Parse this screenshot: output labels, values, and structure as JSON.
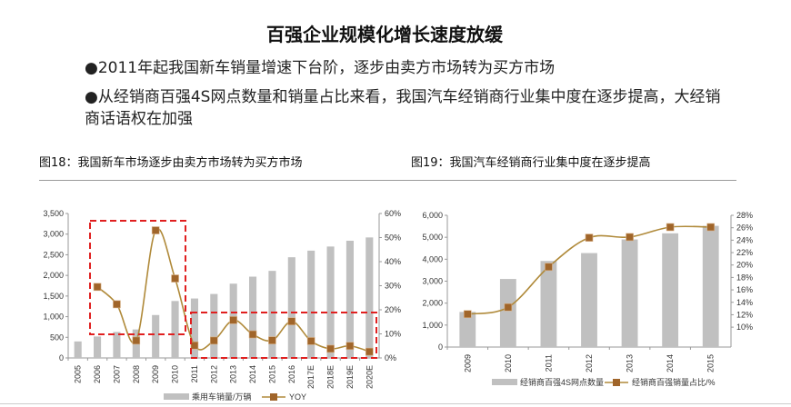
{
  "title": "百强企业规模化增长速度放缓",
  "bullets": [
    "●2011年起我国新车销量增速下台阶，逐步由卖方市场转为买方市场",
    "●从经销商百强4S网点数量和销量占比来看，我国汽车经销商行业集中度在逐步提高，大经销商话语权在加强"
  ],
  "colors": {
    "bar": "#c0c0c0",
    "line": "#b08a3a",
    "marker": "#a0652a",
    "highlight": "#e02020"
  },
  "chart_data": [
    {
      "type": "bar+line",
      "title": "图18：我国新车市场逐步由卖方市场转为买方市场",
      "categories": [
        "2005",
        "2006",
        "2007",
        "2008",
        "2009",
        "2010",
        "2011",
        "2012",
        "2013",
        "2014",
        "2015",
        "2016",
        "2017E",
        "2018E",
        "2019E",
        "2020E"
      ],
      "series": [
        {
          "name": "乘用车销量/万辆",
          "type": "bar",
          "axis": "left",
          "values": [
            400,
            520,
            630,
            690,
            1040,
            1380,
            1440,
            1550,
            1800,
            1970,
            2110,
            2440,
            2600,
            2700,
            2840,
            2920
          ]
        },
        {
          "name": "YOY",
          "type": "line",
          "axis": "right",
          "values": [
            null,
            29.5,
            22.3,
            7.2,
            53,
            33,
            5.2,
            7.2,
            15.7,
            9.8,
            7.3,
            15.2,
            7.0,
            3.8,
            5.0,
            2.6
          ]
        }
      ],
      "ylim": [
        0,
        3500
      ],
      "yticks": [
        "0",
        "500",
        "1,000",
        "1,500",
        "2,000",
        "2,500",
        "3,000",
        "3,500"
      ],
      "y2lim": [
        0,
        60
      ],
      "y2ticks": [
        "0%",
        "10%",
        "20%",
        "30%",
        "40%",
        "50%",
        "60%"
      ],
      "annotations": [
        "dashed red box 2006-2010",
        "dashed red box 2011-2020E"
      ],
      "legend": "bottom",
      "grid": false
    },
    {
      "type": "bar+line",
      "title": "图19：我国汽车经销商行业集中度在逐步提高",
      "categories": [
        "2009",
        "2010",
        "2011",
        "2012",
        "2013",
        "2014",
        "2015"
      ],
      "series": [
        {
          "name": "经销商百强4S网点数量",
          "type": "bar",
          "axis": "left",
          "values": [
            1600,
            3100,
            3920,
            4280,
            4900,
            5180,
            5520
          ]
        },
        {
          "name": "经销商百强销量占比/%",
          "type": "line",
          "axis": "right",
          "values": [
            12.1,
            13.2,
            19.7,
            24.4,
            24.5,
            26.1,
            26.1
          ]
        }
      ],
      "ylim": [
        0,
        6000
      ],
      "yticks": [
        "0",
        "1,000",
        "2,000",
        "3,000",
        "4,000",
        "5,000",
        "6,000"
      ],
      "y2lim": [
        6.8,
        28
      ],
      "y2ticks": [
        "10%",
        "12%",
        "14%",
        "16%",
        "18%",
        "20%",
        "22%",
        "24%",
        "26%",
        "28%"
      ],
      "legend": "bottom",
      "grid": false
    }
  ]
}
